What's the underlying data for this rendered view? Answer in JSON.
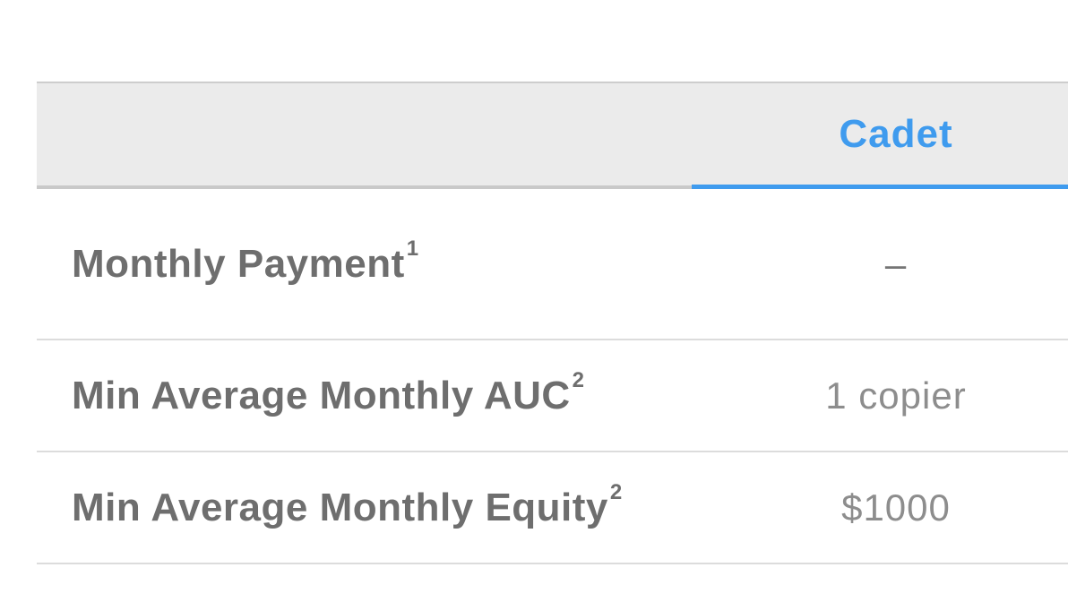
{
  "theme": {
    "accent_blue": "#3f9bee",
    "header_background": "#ebebeb",
    "label_color": "#6e6e6e",
    "value_color": "#8d8d8d",
    "separator_color": "#dcdcdc"
  },
  "table": {
    "plan_header": "Cadet",
    "rows": [
      {
        "label": "Monthly Payment",
        "superscript": "1",
        "value": "–"
      },
      {
        "label": "Min Average Monthly AUC",
        "superscript": "2",
        "value": "1 copier"
      },
      {
        "label": "Min Average Monthly Equity",
        "superscript": "2",
        "value": "$1000"
      }
    ]
  }
}
